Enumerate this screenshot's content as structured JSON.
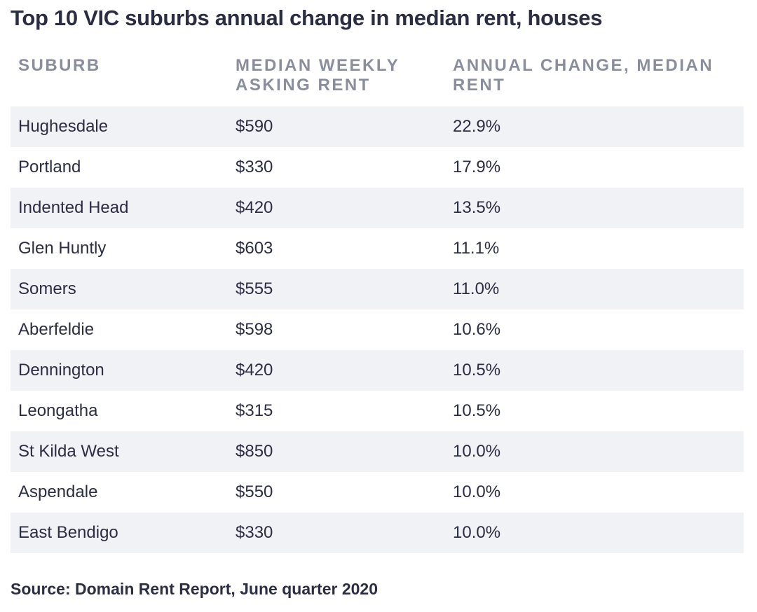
{
  "title": "Top 10 VIC suburbs annual change in median rent, houses",
  "headers": {
    "suburb": "SUBURB",
    "rent": "MEDIAN WEEKLY ASKING RENT",
    "change": "ANNUAL CHANGE, MEDIAN RENT"
  },
  "rows": [
    {
      "suburb": "Hughesdale",
      "rent": "$590",
      "change": "22.9%"
    },
    {
      "suburb": "Portland",
      "rent": "$330",
      "change": "17.9%"
    },
    {
      "suburb": "Indented Head",
      "rent": "$420",
      "change": "13.5%"
    },
    {
      "suburb": "Glen Huntly",
      "rent": "$603",
      "change": "11.1%"
    },
    {
      "suburb": "Somers",
      "rent": "$555",
      "change": "11.0%"
    },
    {
      "suburb": "Aberfeldie",
      "rent": "$598",
      "change": "10.6%"
    },
    {
      "suburb": "Dennington",
      "rent": "$420",
      "change": "10.5%"
    },
    {
      "suburb": "Leongatha",
      "rent": "$315",
      "change": "10.5%"
    },
    {
      "suburb": "St Kilda West",
      "rent": "$850",
      "change": "10.0%"
    },
    {
      "suburb": "Aspendale",
      "rent": "$550",
      "change": "10.0%"
    },
    {
      "suburb": "East Bendigo",
      "rent": "$330",
      "change": "10.0%"
    }
  ],
  "source": "Source: Domain Rent Report, June quarter 2020",
  "colors": {
    "text": "#2b2d42",
    "header_text": "#8a8d9c",
    "row_shade": "#f1f2f6"
  }
}
